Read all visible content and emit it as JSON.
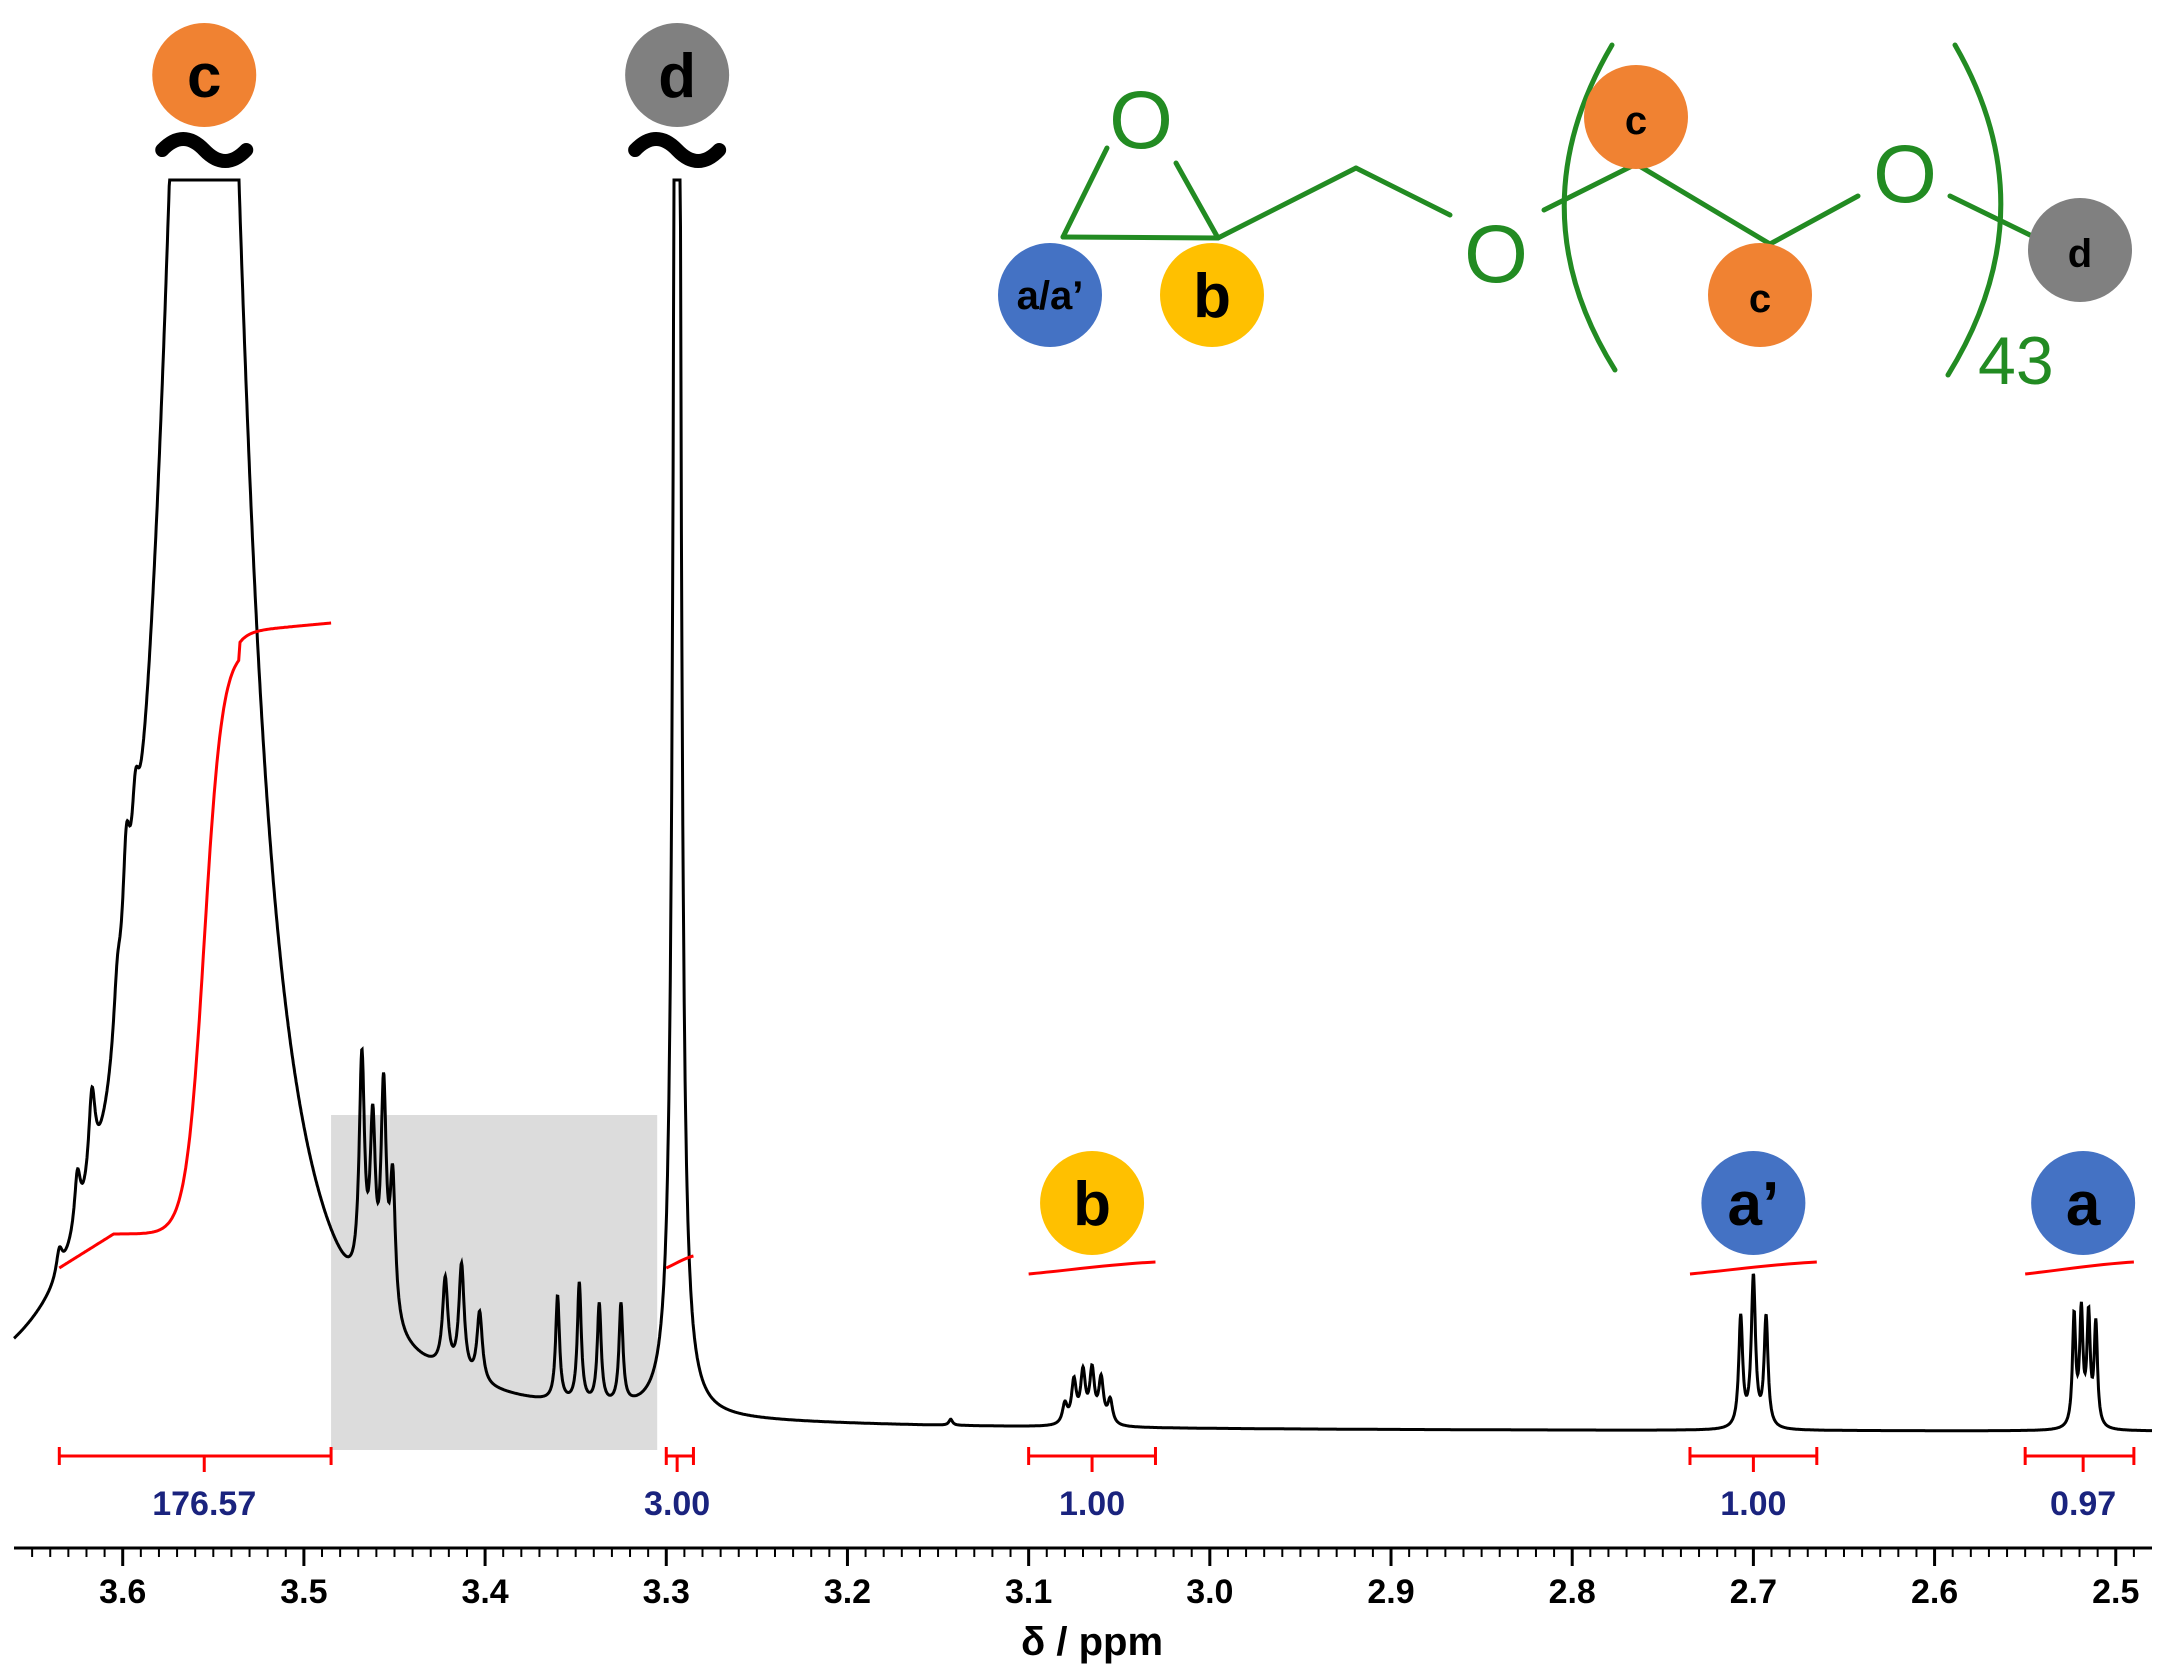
{
  "chart_data": {
    "type": "line",
    "title": "",
    "xlabel": "δ / ppm",
    "ylabel": "",
    "xlim": [
      3.66,
      2.48
    ],
    "x_reversed": true,
    "x_ticks": [
      "3.6",
      "3.5",
      "3.4",
      "3.3",
      "3.2",
      "3.1",
      "3.0",
      "2.9",
      "2.8",
      "2.7",
      "2.6",
      "2.5"
    ],
    "x_tick_values": [
      3.6,
      3.5,
      3.4,
      3.3,
      3.2,
      3.1,
      3.0,
      2.9,
      2.8,
      2.7,
      2.6,
      2.5
    ],
    "grid": false,
    "peaks": [
      {
        "label": "c",
        "center": 3.555,
        "range": [
          3.635,
          3.485
        ],
        "integral": "176.57",
        "marker_color": "#F08232",
        "truncated": true
      },
      {
        "label": "d",
        "center": 3.294,
        "range": [
          3.3,
          3.285
        ],
        "integral": "3.00",
        "marker_color": "#808080",
        "truncated": true
      },
      {
        "label": "b",
        "center": 3.065,
        "range": [
          3.1,
          3.03
        ],
        "integral": "1.00",
        "marker_color": "#FFC000",
        "truncated": false
      },
      {
        "label": "a’",
        "center": 2.7,
        "range": [
          2.735,
          2.665
        ],
        "integral": "1.00",
        "marker_color": "#4472C4",
        "truncated": false
      },
      {
        "label": "a",
        "center": 2.518,
        "range": [
          2.55,
          2.49
        ],
        "integral": "0.97",
        "marker_color": "#4472C4",
        "truncated": false
      }
    ],
    "shaded_region": {
      "from": 3.485,
      "to": 3.305
    },
    "colors": {
      "spectrum": "#000000",
      "integral": "#FF0000",
      "integral_value": "#1A237E",
      "structure": "#228B22",
      "shade": "#DCDCDC"
    }
  },
  "structure": {
    "oxygen": "O",
    "repeat_count": "43",
    "labels": {
      "aa": "a/a’",
      "b": "b",
      "c1": "c",
      "c2": "c",
      "d": "d"
    }
  }
}
